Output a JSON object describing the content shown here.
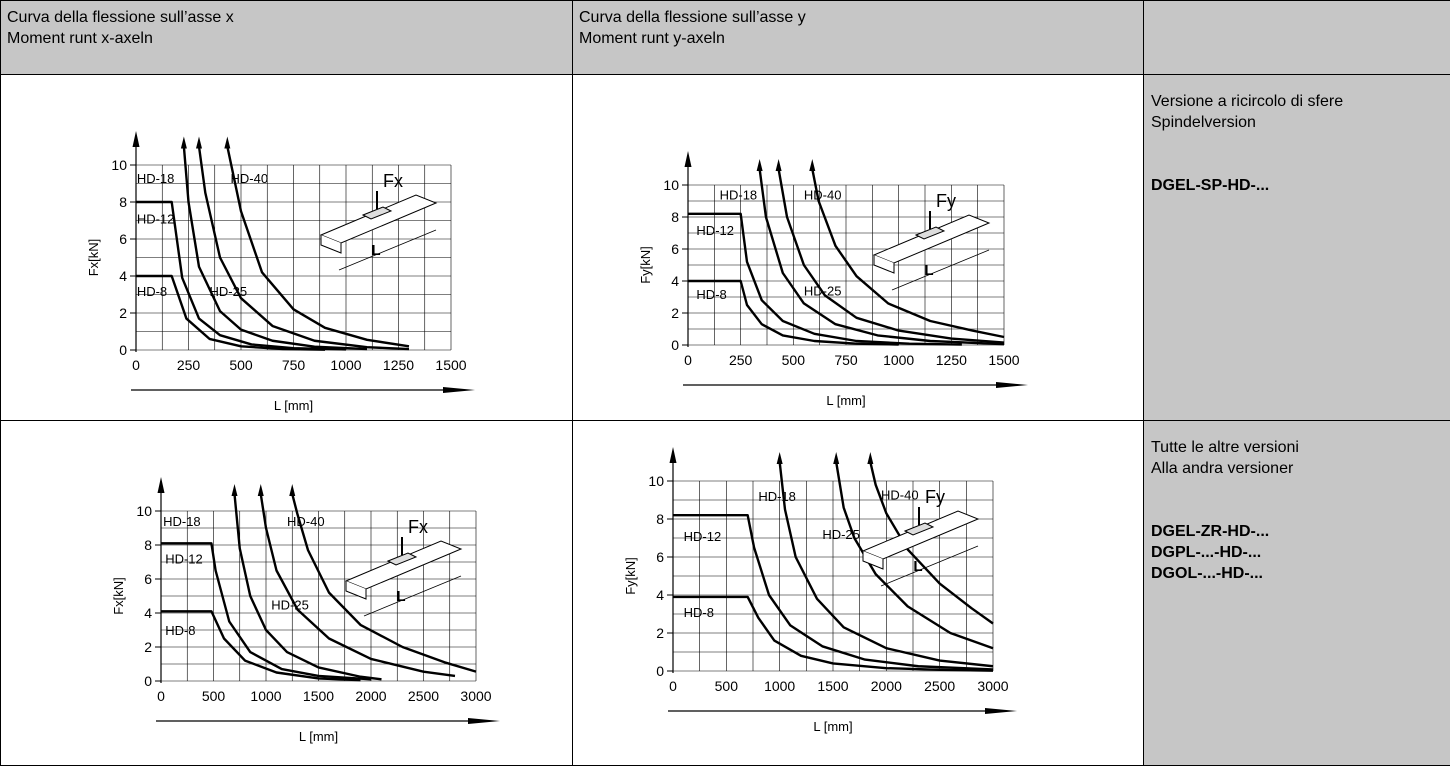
{
  "header": {
    "col1": [
      "Curva della flessione sull’asse x",
      "Moment runt x-axeln"
    ],
    "col2": [
      "Curva della flessione sull’asse y",
      "Moment runt y-axeln"
    ],
    "col3": []
  },
  "rows": [
    {
      "desc": [
        "Versione a ricircolo di sfere",
        "Spindelversion"
      ],
      "models": [
        "DGEL-SP-HD-..."
      ]
    },
    {
      "desc": [
        "Tutte le altre versioni",
        "Alla andra versioner"
      ],
      "models": [
        "DGEL-ZR-HD-...",
        "DGPL-...-HD-...",
        "DGOL-...-HD-..."
      ]
    }
  ],
  "chart_data": [
    {
      "type": "line",
      "ylabel": "Fx[kN]",
      "xlabel": "L [mm]",
      "xlim": [
        0,
        1500
      ],
      "ylim": [
        0,
        10
      ],
      "xticks": [
        0,
        250,
        500,
        750,
        1000,
        1250,
        1500
      ],
      "yticks": [
        0,
        2,
        4,
        6,
        8,
        10
      ],
      "force_label": "Fx",
      "length_label": "L",
      "series": [
        {
          "name": "HD-8",
          "limit": 4,
          "x": [
            0,
            170,
            240,
            350,
            500,
            700,
            900
          ],
          "y": [
            4,
            4,
            1.7,
            0.6,
            0.2,
            0.05,
            0.02
          ]
        },
        {
          "name": "HD-12",
          "limit": 8,
          "x": [
            0,
            170,
            220,
            300,
            400,
            550,
            750,
            1000
          ],
          "y": [
            8,
            8,
            3.9,
            1.7,
            0.8,
            0.3,
            0.1,
            0.03
          ]
        },
        {
          "name": "HD-18",
          "x": [
            228,
            250,
            300,
            400,
            500,
            650,
            850,
            1100
          ],
          "y": [
            11,
            8,
            4.5,
            2.1,
            1.1,
            0.5,
            0.18,
            0.05
          ]
        },
        {
          "name": "HD-25",
          "x": [
            300,
            330,
            400,
            500,
            650,
            850,
            1100,
            1300
          ],
          "y": [
            11,
            8.5,
            5,
            2.8,
            1.3,
            0.5,
            0.15,
            0.05
          ]
        },
        {
          "name": "HD-40",
          "x": [
            435,
            500,
            600,
            750,
            900,
            1100,
            1300
          ],
          "y": [
            11,
            7.5,
            4.2,
            2.2,
            1.2,
            0.55,
            0.2
          ]
        }
      ]
    },
    {
      "type": "line",
      "ylabel": "Fy[kN]",
      "xlabel": "L [mm]",
      "xlim": [
        0,
        1500
      ],
      "ylim": [
        0,
        10
      ],
      "xticks": [
        0,
        250,
        500,
        750,
        1000,
        1250,
        1500
      ],
      "yticks": [
        0,
        2,
        4,
        6,
        8,
        10
      ],
      "force_label": "Fy",
      "length_label": "L",
      "series": [
        {
          "name": "HD-8",
          "limit": 4,
          "x": [
            0,
            250,
            280,
            350,
            450,
            600,
            800,
            1000
          ],
          "y": [
            4,
            4,
            2.5,
            1.3,
            0.6,
            0.25,
            0.08,
            0.03
          ]
        },
        {
          "name": "HD-12",
          "limit": 8.2,
          "x": [
            0,
            250,
            280,
            350,
            450,
            600,
            800,
            1050,
            1300
          ],
          "y": [
            8.2,
            8.2,
            5.2,
            2.8,
            1.5,
            0.7,
            0.25,
            0.08,
            0.03
          ]
        },
        {
          "name": "HD-18",
          "x": [
            340,
            370,
            450,
            550,
            700,
            900,
            1150,
            1500
          ],
          "y": [
            11,
            8,
            4.5,
            2.6,
            1.3,
            0.6,
            0.25,
            0.05
          ]
        },
        {
          "name": "HD-25",
          "x": [
            430,
            470,
            550,
            650,
            800,
            1000,
            1250,
            1500
          ],
          "y": [
            11,
            8,
            5,
            3.1,
            1.7,
            0.9,
            0.4,
            0.15
          ]
        },
        {
          "name": "HD-40",
          "x": [
            590,
            620,
            700,
            800,
            950,
            1150,
            1350,
            1500
          ],
          "y": [
            11,
            9,
            6.2,
            4.3,
            2.6,
            1.5,
            0.9,
            0.5
          ]
        }
      ]
    },
    {
      "type": "line",
      "ylabel": "Fx[kN]",
      "xlabel": "L [mm]",
      "xlim": [
        0,
        3000
      ],
      "ylim": [
        0,
        10
      ],
      "xticks": [
        0,
        500,
        1000,
        1500,
        2000,
        2500,
        3000
      ],
      "yticks": [
        0,
        2,
        4,
        6,
        8,
        10
      ],
      "force_label": "Fx",
      "length_label": "L",
      "series": [
        {
          "name": "HD-8",
          "limit": 4.1,
          "x": [
            0,
            480,
            600,
            800,
            1100,
            1500,
            1900
          ],
          "y": [
            4.1,
            4.1,
            2.5,
            1.2,
            0.5,
            0.15,
            0.05
          ]
        },
        {
          "name": "HD-12",
          "limit": 8.1,
          "x": [
            0,
            480,
            520,
            650,
            850,
            1150,
            1500,
            2000
          ],
          "y": [
            8.1,
            8.1,
            6.5,
            3.5,
            1.7,
            0.7,
            0.3,
            0.1
          ]
        },
        {
          "name": "HD-18",
          "x": [
            700,
            750,
            850,
            1000,
            1200,
            1500,
            1900,
            2100
          ],
          "y": [
            11,
            7.8,
            5,
            3,
            1.7,
            0.8,
            0.25,
            0.1
          ]
        },
        {
          "name": "HD-25",
          "x": [
            950,
            1000,
            1100,
            1300,
            1600,
            2000,
            2500,
            2800
          ],
          "y": [
            11,
            9,
            6.5,
            4.2,
            2.5,
            1.3,
            0.55,
            0.3
          ]
        },
        {
          "name": "HD-40",
          "x": [
            1250,
            1300,
            1400,
            1600,
            1900,
            2300,
            2700,
            3000
          ],
          "y": [
            11,
            9.8,
            7.7,
            5.2,
            3.3,
            2,
            1.1,
            0.55
          ]
        }
      ]
    },
    {
      "type": "line",
      "ylabel": "Fy[kN]",
      "xlabel": "L [mm]",
      "xlim": [
        0,
        3000
      ],
      "ylim": [
        0,
        10
      ],
      "xticks": [
        0,
        500,
        1000,
        1500,
        2000,
        2500,
        3000
      ],
      "yticks": [
        0,
        2,
        4,
        6,
        8,
        10
      ],
      "force_label": "Fy",
      "length_label": "L",
      "series": [
        {
          "name": "HD-8",
          "limit": 3.9,
          "x": [
            0,
            700,
            800,
            950,
            1200,
            1500,
            2000,
            2500,
            3000
          ],
          "y": [
            3.9,
            3.9,
            2.8,
            1.6,
            0.8,
            0.4,
            0.15,
            0.06,
            0.02
          ]
        },
        {
          "name": "HD-12",
          "limit": 8.2,
          "x": [
            0,
            700,
            760,
            900,
            1100,
            1400,
            1800,
            2300,
            3000
          ],
          "y": [
            8.2,
            8.2,
            6.5,
            4,
            2.4,
            1.3,
            0.6,
            0.25,
            0.08
          ]
        },
        {
          "name": "HD-18",
          "x": [
            1000,
            1050,
            1150,
            1350,
            1600,
            2000,
            2500,
            3000
          ],
          "y": [
            11,
            8.5,
            6,
            3.8,
            2.3,
            1.2,
            0.55,
            0.25
          ]
        },
        {
          "name": "HD-25",
          "x": [
            1530,
            1600,
            1700,
            1900,
            2200,
            2600,
            3000
          ],
          "y": [
            11,
            8.6,
            7,
            5.1,
            3.4,
            2,
            1.2
          ]
        },
        {
          "name": "HD-40",
          "x": [
            1850,
            1900,
            2000,
            2200,
            2500,
            2800,
            3000
          ],
          "y": [
            11,
            9.8,
            8.3,
            6.4,
            4.6,
            3.3,
            2.5
          ]
        }
      ]
    }
  ]
}
